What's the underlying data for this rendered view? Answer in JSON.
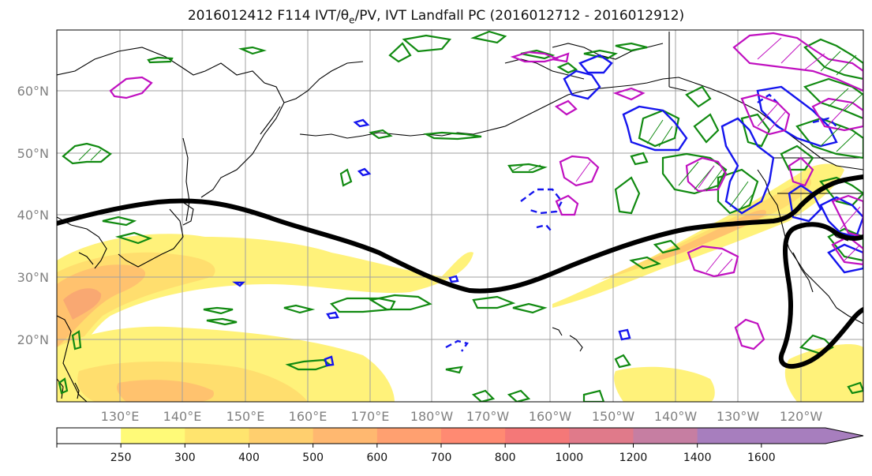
{
  "title": {
    "prefix": "2016012412 F114 IVT/",
    "theta": "θ",
    "sub": "e",
    "suffix": "/PV, IVT Landfall PC (2016012712 - 2016012912)"
  },
  "lat_labels": [
    "60°N",
    "50°N",
    "40°N",
    "30°N",
    "20°N"
  ],
  "lon_labels": [
    "130°E",
    "140°E",
    "150°E",
    "160°E",
    "170°E",
    "180°W",
    "170°W",
    "160°W",
    "150°W",
    "140°W",
    "130°W",
    "120°W"
  ],
  "colorbar": {
    "labels": [
      "250",
      "300",
      "400",
      "500",
      "600",
      "700",
      "800",
      "1000",
      "1200",
      "1400",
      "1600"
    ],
    "colors": [
      "#ffffff",
      "#fffa78",
      "#ffe46e",
      "#ffcf6e",
      "#ffb870",
      "#ffa070",
      "#ff8a72",
      "#f47878",
      "#e07a8a",
      "#c67ea2",
      "#a77ebe",
      "#a77ebe"
    ]
  },
  "colors": {
    "ivt_low": "#fff27a",
    "ivt_mid": "#ffc76e",
    "ivt_high": "#f8a070",
    "pc_line": "#000000",
    "green_contour": "#118a11",
    "blue_contour": "#1515ee",
    "magenta_contour": "#c010c0",
    "grid": "#a0a0a0",
    "coast": "#000000"
  }
}
